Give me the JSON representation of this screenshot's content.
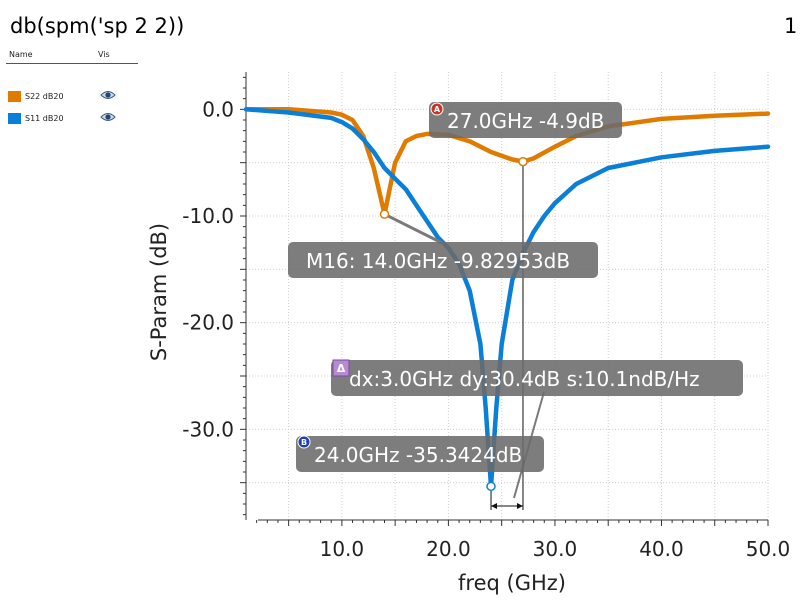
{
  "header": {
    "title": "db(spm('sp 2 2))",
    "page": "1"
  },
  "legend": {
    "col_name": "Name",
    "col_vis": "Vis",
    "items": [
      {
        "label": "S22 dB20",
        "color": "#E07B00",
        "icon": "eye-icon"
      },
      {
        "label": "S11 dB20",
        "color": "#0A7FD8",
        "icon": "eye-icon"
      }
    ]
  },
  "chart_data": {
    "type": "line",
    "xlabel": "freq (GHz)",
    "ylabel": "S-Param (dB)",
    "xlim": [
      1,
      50
    ],
    "ylim": [
      -38.5,
      3.5
    ],
    "xticks": [
      10,
      20,
      30,
      40,
      50
    ],
    "xtick_labels": [
      "10.0",
      "20.0",
      "30.0",
      "40.0",
      "50.0"
    ],
    "yticks": [
      0,
      -10,
      -20,
      -30
    ],
    "ytick_labels": [
      "0.0",
      "-10.0",
      "-20.0",
      "-30.0"
    ],
    "grid": true,
    "series": [
      {
        "name": "S22 dB20",
        "color": "#E07B00",
        "x": [
          1,
          5,
          9,
          10,
          11,
          12,
          13,
          14,
          15,
          16,
          17,
          18,
          20,
          22,
          24,
          26,
          27,
          28,
          30,
          32,
          35,
          40,
          45,
          50
        ],
        "y": [
          0,
          0,
          -0.3,
          -0.5,
          -1.0,
          -2.5,
          -5.5,
          -9.83,
          -5.0,
          -3.0,
          -2.5,
          -2.3,
          -2.4,
          -3.0,
          -4.0,
          -4.7,
          -4.9,
          -4.6,
          -3.5,
          -2.5,
          -1.6,
          -0.9,
          -0.6,
          -0.4
        ]
      },
      {
        "name": "S11 dB20",
        "color": "#0A7FD8",
        "x": [
          1,
          5,
          9,
          10,
          11,
          12,
          13,
          14,
          15,
          16,
          17,
          18,
          19,
          20,
          21,
          22,
          23,
          23.5,
          24,
          24.5,
          25,
          26,
          27,
          28,
          29,
          30,
          32,
          35,
          40,
          45,
          50
        ],
        "y": [
          0,
          -0.3,
          -0.8,
          -1.2,
          -1.8,
          -2.8,
          -4.0,
          -5.5,
          -6.5,
          -7.5,
          -9.0,
          -10.5,
          -12.0,
          -13.0,
          -14.5,
          -17.0,
          -22.0,
          -28.0,
          -35.34,
          -28.0,
          -22.0,
          -16.0,
          -13.5,
          -11.5,
          -10.0,
          -8.8,
          -7.0,
          -5.5,
          -4.5,
          -3.9,
          -3.5
        ]
      }
    ],
    "markers": [
      {
        "series": 0,
        "x": 27,
        "y": -4.9,
        "badge": "A",
        "badge_color": "#C0392B",
        "text": "27.0GHz -4.9dB"
      },
      {
        "series": 0,
        "x": 14,
        "y": -9.82953,
        "badge": "",
        "text": "M16: 14.0GHz -9.82953dB"
      },
      {
        "series": 1,
        "x": 24,
        "y": -35.3424,
        "badge": "B",
        "badge_color": "#1F3FB8",
        "text": "24.0GHz -35.3424dB"
      }
    ],
    "delta": {
      "badge": "Δ",
      "badge_color": "#B58BD6",
      "text": "dx:3.0GHz dy:30.4dB s:10.1ndB/Hz"
    }
  }
}
